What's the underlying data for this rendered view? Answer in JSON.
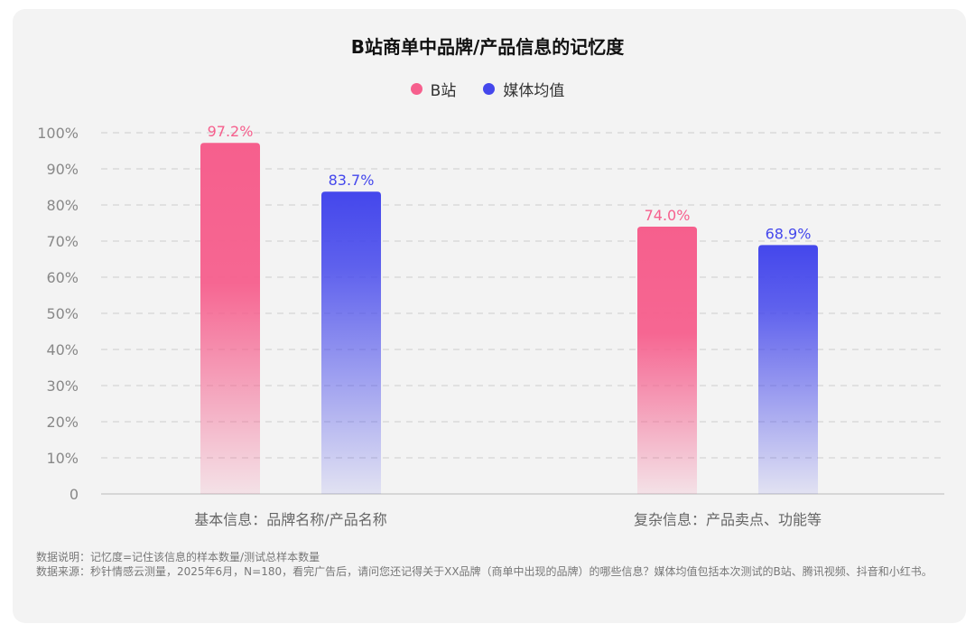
{
  "colors": {
    "bilibili": "#f65f8d",
    "media_avg": "#4447ec",
    "grid": "#d9d9d9",
    "tick": "#888888",
    "axis_label": "#666666"
  },
  "chart_data": {
    "type": "bar",
    "title": "B站商单中品牌/产品信息的记忆度",
    "categories": [
      "基本信息：品牌名称/产品名称",
      "复杂信息：产品卖点、功能等"
    ],
    "series": [
      {
        "name": "B站",
        "values": [
          97.2,
          74.0
        ],
        "labels": [
          "97.2%",
          "74.0%"
        ],
        "color": "#f65f8d"
      },
      {
        "name": "媒体均值",
        "values": [
          83.7,
          68.9
        ],
        "labels": [
          "83.7%",
          "68.9%"
        ],
        "color": "#4447ec"
      }
    ],
    "ylim": [
      0,
      100
    ],
    "y_ticks": [
      "0",
      "10%",
      "20%",
      "30%",
      "40%",
      "50%",
      "60%",
      "70%",
      "80%",
      "90%",
      "100%"
    ],
    "grid": true,
    "legend": "top-center",
    "xlabel": "",
    "ylabel": ""
  },
  "notes": {
    "line1": "数据说明：记忆度=记住该信息的样本数量/测试总样本数量",
    "line2": "数据来源：秒针情感云测量，2025年6月，N=180，看完广告后，请问您还记得关于XX品牌（商单中出现的品牌）的哪些信息？媒体均值包括本次测试的B站、腾讯视频、抖音和小红书。"
  }
}
